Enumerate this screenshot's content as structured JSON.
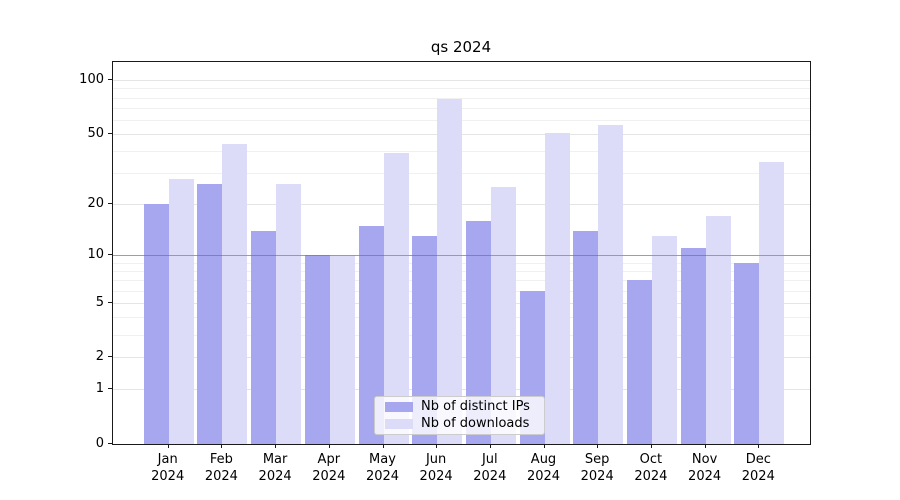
{
  "title": "qs 2024",
  "legend": {
    "items": [
      {
        "label": "Nb of distinct IPs"
      },
      {
        "label": "Nb of downloads"
      }
    ]
  },
  "colors": {
    "distinct_ips_bar": "#a7a7f0",
    "downloads_bar": "#dcdcf8",
    "major_gridline": "#e5e5e5",
    "minor_gridline": "#f0f0f0",
    "emphasized_line": "#6e6e6e",
    "axis_spine": "#1a1a1a"
  },
  "chart_data": {
    "type": "bar",
    "title": "qs 2024",
    "xlabel": "",
    "ylabel": "",
    "categories": [
      "Jan 2024",
      "Feb 2024",
      "Mar 2024",
      "Apr 2024",
      "May 2024",
      "Jun 2024",
      "Jul 2024",
      "Aug 2024",
      "Sep 2024",
      "Oct 2024",
      "Nov 2024",
      "Dec 2024"
    ],
    "series": [
      {
        "name": "Nb of distinct IPs",
        "color": "#a7a7f0",
        "values": [
          20,
          26,
          14,
          10,
          15,
          13,
          16,
          6,
          14,
          7,
          11,
          9
        ]
      },
      {
        "name": "Nb of downloads",
        "color": "#dcdcf8",
        "values": [
          28,
          44,
          26,
          10,
          39,
          79,
          25,
          51,
          56,
          13,
          17,
          35
        ]
      }
    ],
    "yscale": "log10(value+1)",
    "ylim": [
      0,
      126
    ],
    "y_ticks": [
      0,
      1,
      2,
      5,
      10,
      20,
      50,
      100
    ],
    "y_minor_ticks": [
      3,
      4,
      6,
      7,
      8,
      9,
      30,
      40,
      60,
      70,
      80,
      90
    ],
    "emphasized_gridline_at": 10,
    "grid": "on",
    "legend_position": "lower center"
  }
}
